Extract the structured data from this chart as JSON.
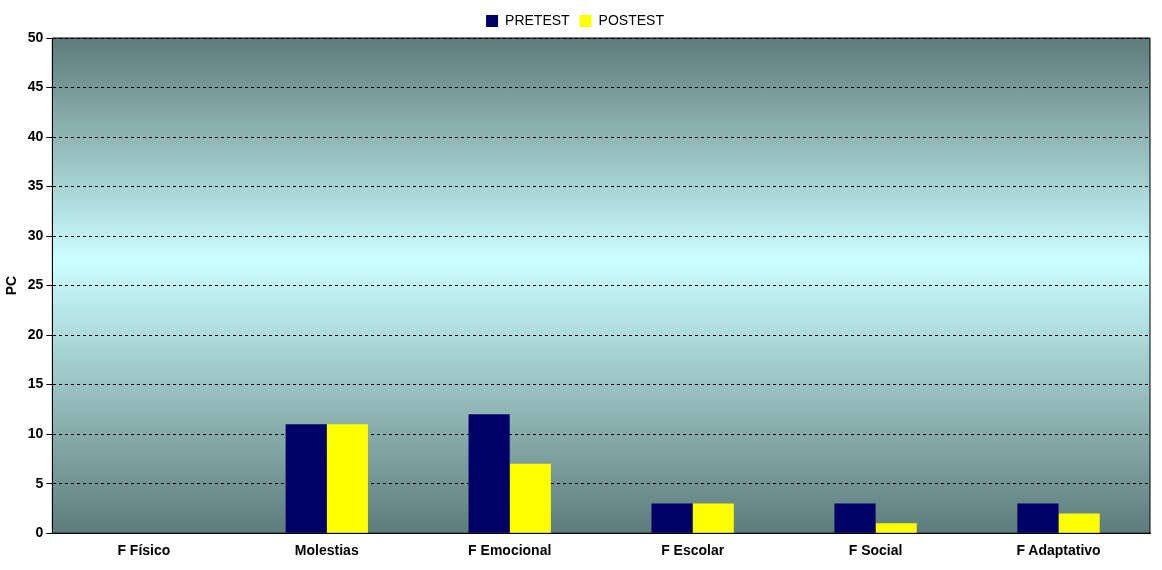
{
  "chart_data": {
    "type": "bar",
    "ylabel": "PC",
    "categories": [
      "F Físico",
      "Molestias",
      "F Emocional",
      "F Escolar",
      "F Social",
      "F Adaptativo"
    ],
    "series": [
      {
        "name": "PRETEST",
        "color": "#000066",
        "values": [
          0,
          11,
          12,
          3,
          3,
          3
        ]
      },
      {
        "name": "POSTEST",
        "color": "#ffff00",
        "values": [
          0,
          11,
          7,
          3,
          1,
          2
        ]
      }
    ],
    "ylim": [
      0,
      50
    ],
    "yticks": [
      0,
      5,
      10,
      15,
      20,
      25,
      30,
      35,
      40,
      45,
      50
    ],
    "grid": "y",
    "legend": "top"
  }
}
